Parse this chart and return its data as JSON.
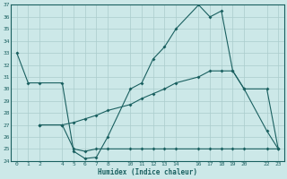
{
  "xlabel": "Humidex (Indice chaleur)",
  "background_color": "#cce8e8",
  "grid_color": "#aacccc",
  "line_color": "#1a6060",
  "ylim": [
    24,
    37
  ],
  "xlim": [
    -0.5,
    23.5
  ],
  "yticks": [
    24,
    25,
    26,
    27,
    28,
    29,
    30,
    31,
    32,
    33,
    34,
    35,
    36,
    37
  ],
  "xtick_positions": [
    0,
    1,
    2,
    4,
    5,
    6,
    7,
    8,
    10,
    11,
    12,
    13,
    14,
    16,
    17,
    18,
    19,
    20,
    22,
    23
  ],
  "xtick_labels": [
    "0",
    "1",
    "2",
    "4",
    "5",
    "6",
    "7",
    "8",
    "10",
    "11",
    "12",
    "13",
    "14",
    "16",
    "17",
    "18",
    "19",
    "20",
    "22",
    "23"
  ],
  "series1_x": [
    0,
    1,
    2,
    4,
    5,
    6,
    7,
    8,
    10,
    11,
    12,
    13,
    14,
    16,
    17,
    18,
    19,
    20,
    22,
    23
  ],
  "series1_y": [
    33.0,
    30.5,
    30.5,
    30.5,
    24.8,
    24.2,
    24.3,
    26.0,
    30.0,
    30.5,
    32.5,
    33.5,
    35.0,
    37.0,
    36.0,
    36.5,
    31.5,
    30.0,
    26.5,
    25.0
  ],
  "series2_x": [
    2,
    4,
    5,
    6,
    7,
    8,
    10,
    11,
    12,
    13,
    14,
    16,
    17,
    18,
    19,
    20,
    22,
    23
  ],
  "series2_y": [
    27.0,
    27.0,
    25.0,
    24.8,
    25.0,
    25.0,
    25.0,
    25.0,
    25.0,
    25.0,
    25.0,
    25.0,
    25.0,
    25.0,
    25.0,
    25.0,
    25.0,
    25.0
  ],
  "series3_x": [
    2,
    4,
    5,
    6,
    7,
    8,
    10,
    11,
    12,
    13,
    14,
    16,
    17,
    18,
    19,
    20,
    22,
    23
  ],
  "series3_y": [
    27.0,
    27.0,
    27.2,
    27.5,
    27.8,
    28.2,
    28.7,
    29.2,
    29.6,
    30.0,
    30.5,
    31.0,
    31.5,
    31.5,
    31.5,
    30.0,
    30.0,
    25.0
  ]
}
